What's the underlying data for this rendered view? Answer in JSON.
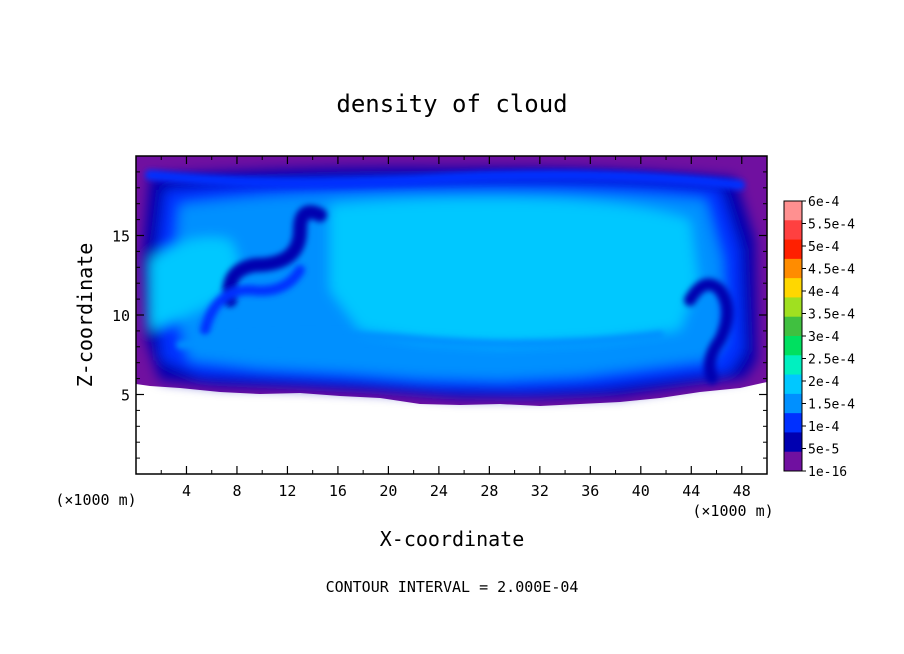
{
  "chart_data": {
    "type": "heatmap",
    "title": "density of cloud",
    "xlabel": "X-coordinate",
    "ylabel": "Z-coordinate",
    "x_unit": "(×1000 m)",
    "x_unit_right": "(×1000 m)",
    "xlim": [
      0,
      50
    ],
    "ylim": [
      0,
      20
    ],
    "x_ticks": [
      4,
      8,
      12,
      16,
      20,
      24,
      28,
      32,
      36,
      40,
      44,
      48
    ],
    "y_ticks": [
      5,
      10,
      15
    ],
    "footer": "CONTOUR INTERVAL = 2.000E-04",
    "colorbar": {
      "labels": [
        "6e-4",
        "5.5e-4",
        "5e-4",
        "4.5e-4",
        "4e-4",
        "3.5e-4",
        "3e-4",
        "2.5e-4",
        "2e-4",
        "1.5e-4",
        "1e-4",
        "5e-5",
        "1e-16"
      ],
      "colors": [
        "#ff9090",
        "#ff4040",
        "#ff2000",
        "#ff8c00",
        "#ffd700",
        "#a0e020",
        "#40c040",
        "#00e060",
        "#00f0c0",
        "#00c8ff",
        "#0090ff",
        "#0030ff",
        "#0000b0",
        "#7010a0"
      ]
    },
    "field_description_levels": {
      "background": "#7010a0",
      "low": "#0000b0",
      "mid_low": "#0030ff",
      "mid": "#0090ff",
      "high": "#00c8ff"
    }
  }
}
